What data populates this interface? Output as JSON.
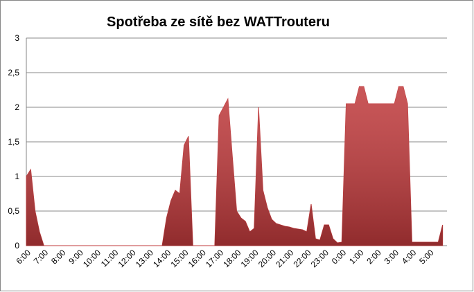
{
  "chart_data": {
    "type": "area",
    "title": "Spotřeba ze sítě bez WATTrouteru",
    "categories": [
      "6:00",
      null,
      null,
      null,
      "7:00",
      null,
      null,
      null,
      "8:00",
      null,
      null,
      null,
      "9:00",
      null,
      null,
      null,
      "10:00",
      null,
      null,
      null,
      "11:00",
      null,
      null,
      null,
      "12:00",
      null,
      null,
      null,
      "13:00",
      null,
      null,
      null,
      "14:00",
      null,
      null,
      null,
      "15:00",
      null,
      null,
      null,
      "16:00",
      null,
      null,
      null,
      "17:00",
      null,
      null,
      null,
      "18:00",
      null,
      null,
      null,
      "19:00",
      null,
      null,
      null,
      "20:00",
      null,
      null,
      null,
      "21:00",
      null,
      null,
      null,
      "22:00",
      null,
      null,
      null,
      "23:00",
      null,
      null,
      null,
      "0:00",
      null,
      null,
      null,
      "1:00",
      null,
      null,
      null,
      "2:00",
      null,
      null,
      null,
      "3:00",
      null,
      null,
      null,
      "4:00",
      null,
      null,
      null,
      "5:00",
      null,
      null,
      null
    ],
    "values": [
      1.0,
      1.1,
      0.5,
      0.2,
      0,
      0,
      0,
      0,
      0,
      0,
      0,
      0,
      0,
      0,
      0,
      0,
      0,
      0,
      0,
      0,
      0,
      0,
      0,
      0,
      0,
      0,
      0,
      0,
      0,
      0,
      0,
      0,
      0.4,
      0.65,
      0.8,
      0.75,
      1.45,
      1.58,
      0,
      0,
      0,
      0,
      0,
      0,
      1.88,
      2.0,
      2.12,
      1.3,
      0.5,
      0.4,
      0.35,
      0.2,
      0.25,
      2.0,
      0.8,
      0.55,
      0.38,
      0.32,
      0.3,
      0.28,
      0.27,
      0.25,
      0.24,
      0.23,
      0.2,
      0.6,
      0.1,
      0.08,
      0.3,
      0.3,
      0.1,
      0.04,
      0.05,
      2.05,
      2.05,
      2.05,
      2.3,
      2.3,
      2.05,
      2.05,
      2.05,
      2.05,
      2.05,
      2.05,
      2.05,
      2.3,
      2.3,
      2.05,
      0.05,
      0.05,
      0.05,
      0.05,
      0.05,
      0.05,
      0.05,
      0.3
    ],
    "color": "#c0393b",
    "ylim": [
      0,
      3
    ],
    "yticks": [
      0,
      {
        "value": 0.5,
        "label": "0,5"
      },
      1,
      {
        "value": 1.5,
        "label": "1,5"
      },
      2,
      {
        "value": 2.5,
        "label": "2,5"
      },
      3
    ],
    "grid": true
  }
}
